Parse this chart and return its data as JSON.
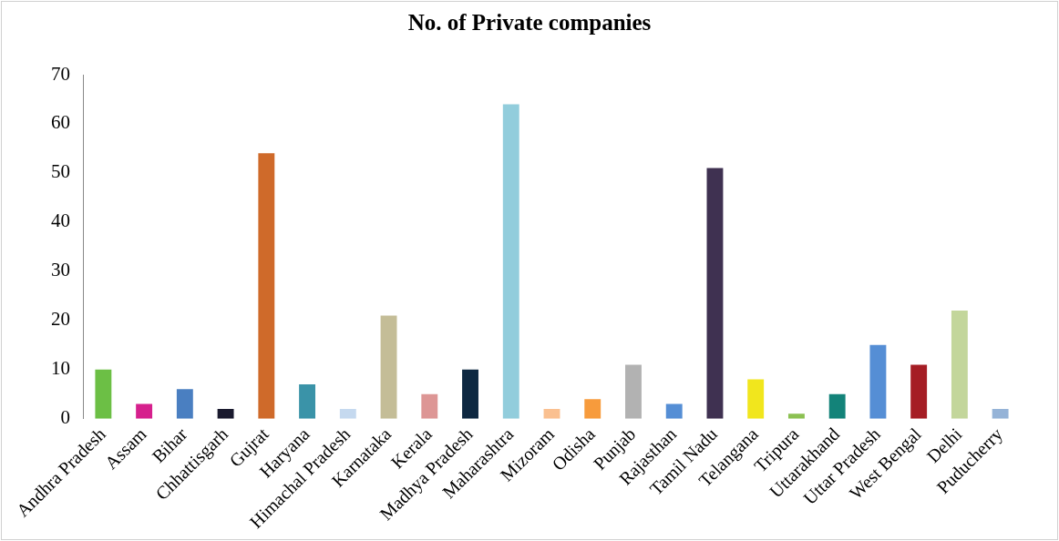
{
  "chart_data": {
    "type": "bar",
    "title": "No. of Private companies",
    "categories": [
      "Andhra Pradesh",
      "Assam",
      "Bihar",
      "Chhattisgarh",
      "Gujrat",
      "Haryana",
      "Himachal Pradesh",
      "Karnataka",
      "Kerala",
      "Madhya Pradesh",
      "Maharashtra",
      "Mizoram",
      "Odisha",
      "Punjab",
      "Rajasthan",
      "Tamil Nadu",
      "Telangana",
      "Tripura",
      "Uttarakhand",
      "Uttar Pradesh",
      "West Bengal",
      "Delhi",
      "Puducherry"
    ],
    "values": [
      10,
      3,
      6,
      2,
      54,
      7,
      2,
      21,
      5,
      10,
      64,
      2,
      4,
      11,
      3,
      51,
      8,
      1,
      5,
      15,
      11,
      22,
      2
    ],
    "colors": [
      "#6cbf45",
      "#d6208d",
      "#4a7fc1",
      "#1a1a2e",
      "#cf6a2a",
      "#3a93a8",
      "#c5d9ef",
      "#c4bd97",
      "#dd9695",
      "#0e2841",
      "#92cddc",
      "#fac090",
      "#f79b3c",
      "#b2b2b2",
      "#558ed5",
      "#3f3151",
      "#f1e61d",
      "#8cc152",
      "#138379",
      "#558ed5",
      "#a51d24",
      "#c3d69b",
      "#95b3d7"
    ],
    "ylim": [
      0,
      70
    ],
    "yticks": [
      0,
      10,
      20,
      30,
      40,
      50,
      60,
      70
    ],
    "grid": false,
    "legend": false
  }
}
